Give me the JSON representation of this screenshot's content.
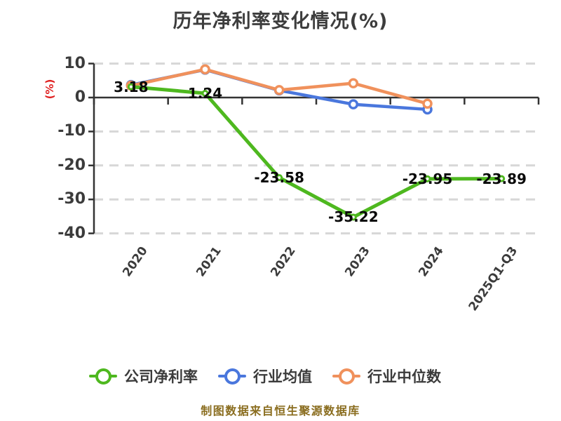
{
  "title": "历年净利率变化情况(%)",
  "y_axis_unit": "(%)",
  "footer": "制图数据来自恒生聚源数据库",
  "colors": {
    "company": "#4eb81f",
    "industry_avg": "#4a77dd",
    "industry_median": "#f0915c",
    "axis": "#333333",
    "grid": "#d7d7d7",
    "tick_text": "#3b3b3b",
    "data_label": "#0a0a0a",
    "y_unit": "#e02222",
    "footer": "#8a6d1f",
    "background": "#ffffff"
  },
  "chart_data": {
    "type": "line",
    "categories": [
      "2020",
      "2021",
      "2022",
      "2023",
      "2024",
      "2025Q1-Q3"
    ],
    "series": [
      {
        "name": "公司净利率",
        "key": "company-net-margin",
        "color_key": "company",
        "values": [
          3.18,
          1.24,
          -23.58,
          -35.22,
          -23.95,
          -23.89
        ],
        "point_labels": [
          "3.18",
          "1.24",
          "-23.58",
          "-35.22",
          "-23.95",
          "-23.89"
        ]
      },
      {
        "name": "行业均值",
        "key": "industry-average",
        "color_key": "industry_avg",
        "values": [
          3.7,
          8.2,
          2.1,
          -2.0,
          -3.5,
          null
        ],
        "point_labels": null
      },
      {
        "name": "行业中位数",
        "key": "industry-median",
        "color_key": "industry_median",
        "values": [
          3.5,
          8.3,
          2.2,
          4.2,
          -1.8,
          null
        ],
        "point_labels": null
      }
    ],
    "title": "历年净利率变化情况(%)",
    "xlabel": "",
    "ylabel": "(%)",
    "yticks": [
      10,
      0,
      -10,
      -20,
      -30,
      -40
    ],
    "ylim": [
      -40,
      10
    ],
    "grid": "horizontal dashed",
    "legend_position": "bottom",
    "x_label_rotation_deg": -55
  }
}
